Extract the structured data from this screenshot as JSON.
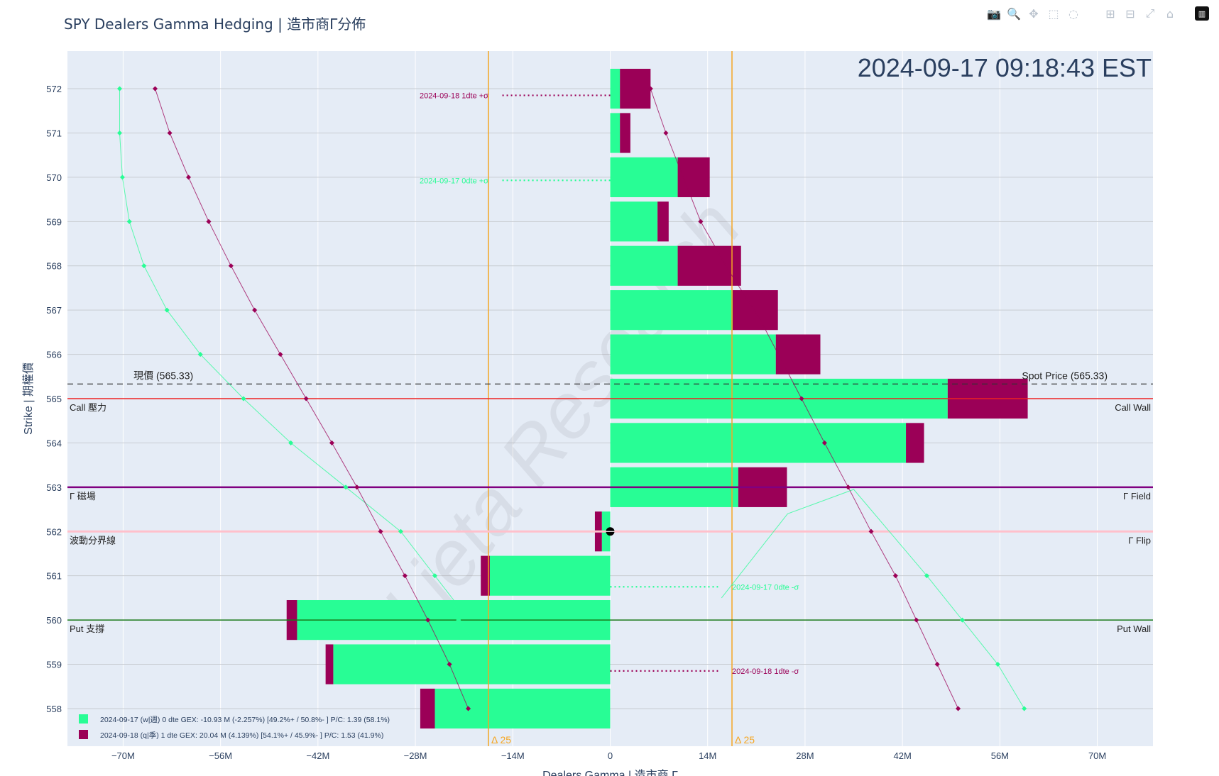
{
  "title": "SPY Dealers Gamma Hedging | 造市商Γ分佈",
  "timestamp": "2024-09-17 09:18:43 EST",
  "watermark": "Lieta Research",
  "modebar": [
    {
      "name": "camera-icon",
      "glyph": "📷"
    },
    {
      "name": "zoom-icon",
      "glyph": "🔍"
    },
    {
      "name": "pan-icon",
      "glyph": "✥"
    },
    {
      "name": "box-select-icon",
      "glyph": "⬚"
    },
    {
      "name": "lasso-select-icon",
      "glyph": "◌"
    },
    {
      "gap": true
    },
    {
      "name": "zoom-in-icon",
      "glyph": "⊞"
    },
    {
      "name": "zoom-out-icon",
      "glyph": "⊟"
    },
    {
      "name": "autoscale-icon",
      "glyph": "⤢"
    },
    {
      "name": "reset-axes-icon",
      "glyph": "⌂"
    },
    {
      "name": "plotly-logo-icon",
      "glyph": "▥",
      "logo": true
    }
  ],
  "chart_data": {
    "type": "bar",
    "orientation": "horizontal",
    "barmode": "relative",
    "xlabel": "Dealers Gamma | 造市商 Γ",
    "ylabel": "Strike | 期權價",
    "xlim": [
      -78,
      78
    ],
    "ylim": [
      557.15,
      572.85
    ],
    "xticks": [
      {
        "v": -70,
        "label": "−70M"
      },
      {
        "v": -56,
        "label": "−56M"
      },
      {
        "v": -42,
        "label": "−42M"
      },
      {
        "v": -28,
        "label": "−28M"
      },
      {
        "v": -14,
        "label": "−14M"
      },
      {
        "v": 0,
        "label": "0"
      },
      {
        "v": 14,
        "label": "14M"
      },
      {
        "v": 28,
        "label": "28M"
      },
      {
        "v": 42,
        "label": "42M"
      },
      {
        "v": 56,
        "label": "56M"
      },
      {
        "v": 70,
        "label": "70M"
      }
    ],
    "strikes": [
      558,
      559,
      560,
      561,
      562,
      563,
      564,
      565,
      566,
      567,
      568,
      569,
      570,
      571,
      572
    ],
    "background": "#e5ecf6",
    "series": [
      {
        "name": "2024-09-17 (w|週)",
        "color": "#28fd95",
        "legend": "2024-09-17 (w|週)    0 dte    GEX: -10.93 M (-2.257%)      [49.2%+ / 50.8%- ]      P/C: 1.39    (58.1%)",
        "values": [
          -25.2,
          -39.8,
          -45,
          -17.3,
          -1.2,
          18.4,
          42.5,
          48.5,
          23.8,
          17.6,
          9.7,
          6.8,
          9.7,
          1.4,
          1.4
        ],
        "curve_values": [
          59,
          55.7,
          51,
          45.5,
          39.5,
          33.5,
          28.5,
          24,
          20,
          16.5,
          13.5,
          11,
          9,
          7.2,
          5.5
        ],
        "curve_points_x": [
          58.8,
          55.7,
          50.7,
          45.7,
          38.5,
          -45.8,
          -52.3,
          -59.3,
          -65.9,
          -72.2,
          -76.2,
          -77.8,
          -78.4,
          -78.8,
          -79
        ]
      },
      {
        "name": "2024-09-18 (q|季)",
        "color": "#9b0057",
        "legend": "2024-09-18 (q|季)    1 dte    GEX: 20.04 M (4.139%)      [54.1%+ / 45.9%- ]      P/C: 1.53    (41.9%)",
        "values": [
          -2.1,
          -1.1,
          -1.5,
          -1.3,
          -1.0,
          7.0,
          2.6,
          11.5,
          6.4,
          6.5,
          9.1,
          1.6,
          4.6,
          1.5,
          4.4
        ],
        "curve_values": [
          -0.1,
          0,
          0,
          0,
          0,
          0,
          0,
          0,
          0,
          0,
          0,
          0,
          0,
          0,
          0
        ],
        "curve_points_x": [
          50.2,
          47.0,
          44.0,
          41.0,
          33.5,
          30.8,
          27.8,
          24.4,
          21.0,
          17.8,
          14.4,
          11.2,
          8.0,
          5.0,
          2.3
        ]
      }
    ],
    "curve0dte": [
      [
        -70.5,
        572
      ],
      [
        -70.5,
        571
      ],
      [
        -70.1,
        570
      ],
      [
        -69.1,
        569
      ],
      [
        -67,
        568
      ],
      [
        -63.7,
        567
      ],
      [
        -58.9,
        566
      ],
      [
        -52.7,
        565
      ],
      [
        -45.9,
        564
      ],
      [
        -38,
        563
      ],
      [
        -30.1,
        562
      ],
      [
        -25.2,
        561
      ],
      [
        -22.5,
        560.45
      ],
      [
        -21.8,
        560
      ],
      [
        -20,
        559.6
      ]
    ],
    "curve0dte_right": [
      [
        16,
        560.5
      ],
      [
        25.5,
        562.4
      ],
      [
        35,
        562.95
      ],
      [
        45.5,
        561
      ],
      [
        50.6,
        560
      ],
      [
        55.7,
        559
      ],
      [
        59.5,
        558
      ]
    ],
    "curve1dte_left": [
      [
        -65.4,
        572
      ],
      [
        -63.3,
        571
      ],
      [
        -60.6,
        570
      ],
      [
        -57.7,
        569
      ],
      [
        -54.5,
        568
      ],
      [
        -51.1,
        567
      ],
      [
        -47.4,
        566
      ],
      [
        -43.7,
        565
      ],
      [
        -40,
        564
      ],
      [
        -36.4,
        563
      ],
      [
        -33,
        562
      ],
      [
        -29.5,
        561
      ],
      [
        -26.2,
        560
      ],
      [
        -23.1,
        559
      ],
      [
        -20.4,
        558
      ]
    ],
    "curve1dte_right": [
      [
        5.8,
        572
      ],
      [
        8,
        571
      ],
      [
        13,
        569
      ],
      [
        17,
        567.9
      ],
      [
        21.5,
        566.8
      ],
      [
        27.5,
        565
      ],
      [
        30.8,
        564
      ],
      [
        34.2,
        563
      ],
      [
        37.5,
        562
      ],
      [
        41,
        561
      ],
      [
        44,
        560
      ],
      [
        47,
        559
      ],
      [
        50,
        558
      ]
    ],
    "sigma_lines": [
      {
        "label": "2024-09-18 1dte +σ",
        "y": 571.85,
        "x_from": -15.5,
        "x_to": 0,
        "text_x": -17.5,
        "color": "#9b0057",
        "text_align": "end"
      },
      {
        "label": "2024-09-17 0dte +σ",
        "y": 569.93,
        "x_from": -15.5,
        "x_to": 0,
        "text_x": -17.5,
        "color": "#28fd95",
        "text_align": "end"
      },
      {
        "label": "2024-09-17 0dte -σ",
        "y": 560.75,
        "x_from": 0,
        "x_to": 15.5,
        "text_x": 17.5,
        "color": "#28fd95",
        "text_align": "start"
      },
      {
        "label": "2024-09-18 1dte -σ",
        "y": 558.85,
        "x_from": 0,
        "x_to": 15.5,
        "text_x": 17.5,
        "color": "#9b0057",
        "text_align": "start"
      }
    ],
    "delta_lines": [
      {
        "x": -17.5,
        "label": "Δ 25"
      },
      {
        "x": 17.5,
        "label": "Δ 25"
      }
    ],
    "levels": [
      {
        "y": 565.33,
        "type": "spot",
        "left_label": "現價 (565.33)",
        "right_label": "Spot Price (565.33)",
        "color": "#333333"
      },
      {
        "y": 565.0,
        "type": "call-wall",
        "left_label": "Call 壓力",
        "right_label": "Call Wall",
        "color": "#ee2222"
      },
      {
        "y": 563.0,
        "type": "gamma-field",
        "left_label": "Γ 磁場",
        "right_label": "Γ Field",
        "color": "#800080"
      },
      {
        "y": 562.0,
        "type": "gamma-flip",
        "left_label": "波動分界線",
        "right_label": "Γ Flip",
        "color": "#ffc0cb"
      },
      {
        "y": 560.0,
        "type": "put-wall",
        "left_label": "Put 支撐",
        "right_label": "Put Wall",
        "color": "#1a7a1a"
      }
    ]
  }
}
